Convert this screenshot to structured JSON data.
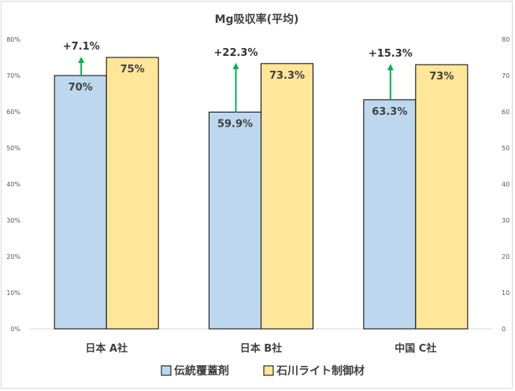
{
  "chart_data": {
    "type": "bar",
    "title": "Mg吸収率(平均)",
    "categories": [
      "日本 A社",
      "日本 B社",
      "中国 C社"
    ],
    "series": [
      {
        "name": "伝統覆蓋剤",
        "values": [
          70,
          59.9,
          63.3
        ],
        "labels": [
          "70%",
          "59.9%",
          "63.3%"
        ],
        "color": "#bdd7ee"
      },
      {
        "name": "石川ライト制御材",
        "values": [
          75,
          73.3,
          73
        ],
        "labels": [
          "75%",
          "73.3%",
          "73%"
        ],
        "color": "#ffe699"
      }
    ],
    "annotations": [
      "+7.1%",
      "+22.3%",
      "+15.3%"
    ],
    "annotation_color": "#00b050",
    "ylim": [
      0,
      80
    ],
    "yticks_left": [
      "0%",
      "10%",
      "20%",
      "30%",
      "40%",
      "50%",
      "60%",
      "70%",
      "80%"
    ],
    "yticks_right": [
      "0",
      "10",
      "20",
      "30",
      "40",
      "50",
      "60",
      "70",
      "80"
    ],
    "legend_position": "bottom",
    "grid": false
  }
}
